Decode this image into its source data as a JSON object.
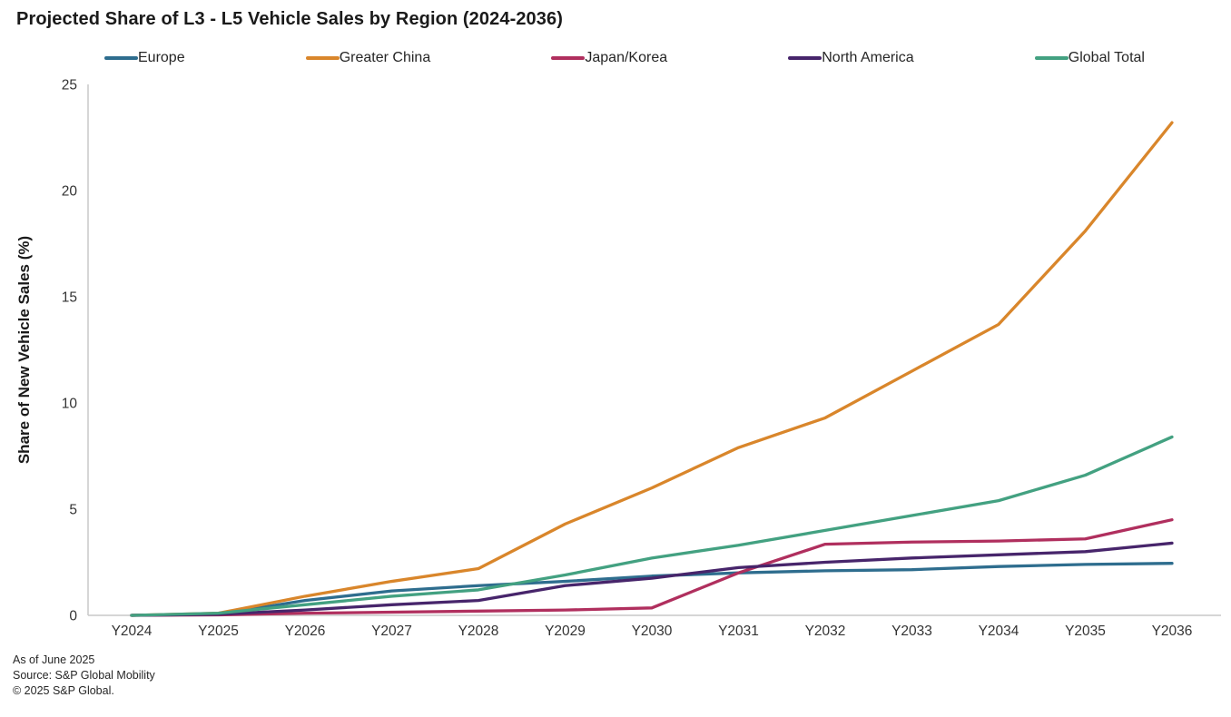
{
  "title": "Projected Share of L3 - L5 Vehicle Sales by Region (2024-2036)",
  "footnotes": [
    "As of June 2025",
    "Source: S&P Global Mobility",
    "© 2025 S&P Global."
  ],
  "chart_data": {
    "type": "line",
    "title": "Projected Share of L3 - L5 Vehicle Sales by Region (2024-2036)",
    "xlabel": "",
    "ylabel": "Share of New Vehicle Sales (%)",
    "categories": [
      "Y2024",
      "Y2025",
      "Y2026",
      "Y2027",
      "Y2028",
      "Y2029",
      "Y2030",
      "Y2031",
      "Y2032",
      "Y2033",
      "Y2034",
      "Y2035",
      "Y2036"
    ],
    "series": [
      {
        "name": "Europe",
        "color": "#2e6d8e",
        "values": [
          0,
          0.05,
          0.7,
          1.15,
          1.4,
          1.6,
          1.85,
          2.0,
          2.1,
          2.15,
          2.3,
          2.4,
          2.45
        ]
      },
      {
        "name": "Greater China",
        "color": "#d9862b",
        "values": [
          0,
          0.1,
          0.9,
          1.6,
          2.2,
          4.3,
          6.0,
          7.9,
          9.3,
          11.5,
          13.7,
          18.1,
          23.2
        ]
      },
      {
        "name": "Japan/Korea",
        "color": "#b02f5e",
        "values": [
          0,
          0.02,
          0.1,
          0.15,
          0.2,
          0.25,
          0.35,
          2.0,
          3.35,
          3.45,
          3.5,
          3.6,
          4.5
        ]
      },
      {
        "name": "North America",
        "color": "#47256b",
        "values": [
          0,
          0.05,
          0.25,
          0.5,
          0.7,
          1.4,
          1.75,
          2.25,
          2.5,
          2.7,
          2.85,
          3.0,
          3.4
        ]
      },
      {
        "name": "Global Total",
        "color": "#43a181",
        "values": [
          0,
          0.1,
          0.5,
          0.9,
          1.2,
          1.9,
          2.7,
          3.3,
          4.0,
          4.7,
          5.4,
          6.6,
          8.4
        ]
      }
    ],
    "ylim": [
      0,
      25
    ],
    "yticks": [
      0,
      5,
      10,
      15,
      20,
      25
    ],
    "grid": false,
    "legend_position": "top",
    "axis_color": "#c9c9c9",
    "tick_label_color": "#333333"
  }
}
